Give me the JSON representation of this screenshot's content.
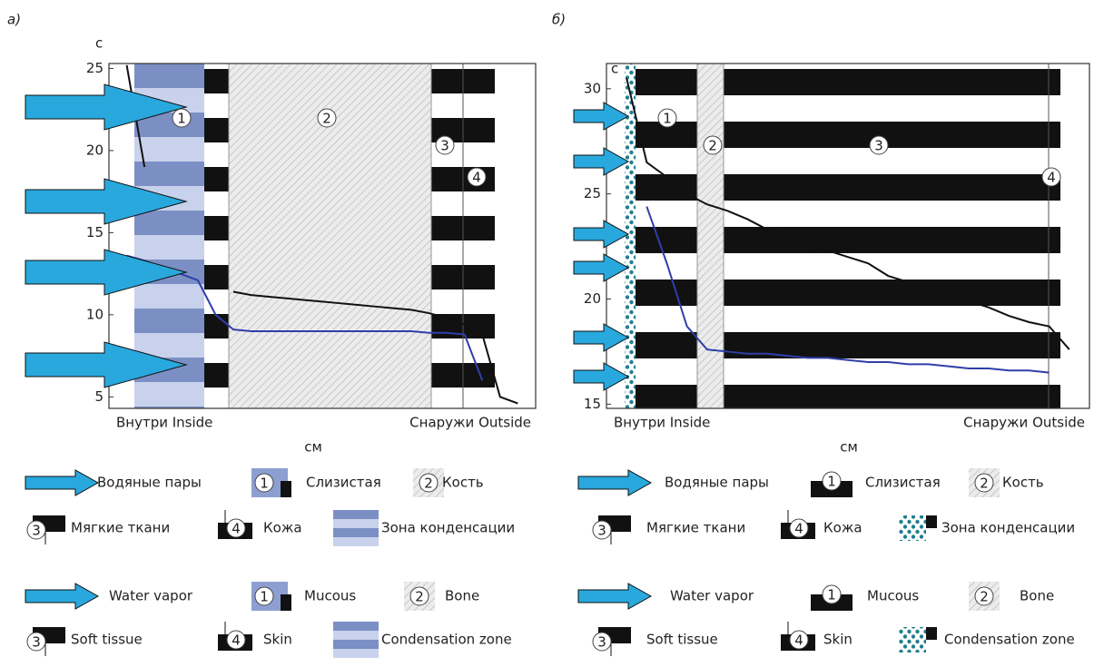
{
  "chart_data": [
    {
      "type": "line",
      "panel_label": "а)",
      "ylabel": "с",
      "xlabel": "см",
      "categories": [
        "Внутри Inside",
        null,
        null,
        null,
        null,
        null,
        null,
        null,
        null,
        null,
        null,
        null,
        null,
        null,
        null,
        null,
        null,
        null,
        null,
        null,
        null,
        null,
        null,
        null,
        "Снаружи Outside"
      ],
      "ylim": [
        4.3,
        25.3
      ],
      "yticks": [
        5,
        10,
        15,
        20,
        25
      ],
      "zone_markers": [
        "1",
        "2",
        "3",
        "4"
      ],
      "series": [
        {
          "color": "#111111",
          "values": [
            null,
            25.2,
            19,
            null,
            null,
            null,
            null,
            11.4,
            11.2,
            11.1,
            11.0,
            10.9,
            10.8,
            10.7,
            10.6,
            10.5,
            10.4,
            10.3,
            10.1,
            9.8,
            9.4,
            8.8,
            5.0,
            4.6,
            null
          ]
        },
        {
          "color": "#2f3fa8",
          "values": [
            null,
            13.6,
            13.3,
            12.9,
            12.5,
            12.1,
            10.0,
            9.1,
            9.0,
            9.0,
            9.0,
            9.0,
            9.0,
            9.0,
            9.0,
            9.0,
            9.0,
            9.0,
            8.9,
            8.9,
            8.8,
            6.0,
            null,
            null,
            null
          ]
        }
      ],
      "legend_ru": [
        "Водяные пары",
        "Слизистая",
        "Кость",
        "Мягкие ткани",
        "Кожа",
        "Зона конденсации"
      ],
      "legend_en": [
        "Water vapor",
        "Mucous",
        "Bone",
        "Soft tissue",
        "Skin",
        "Condensation zone"
      ]
    },
    {
      "type": "line",
      "panel_label": "б)",
      "ylabel": "с",
      "xlabel": "см",
      "categories": [
        "Внутри Inside",
        null,
        null,
        null,
        null,
        null,
        null,
        null,
        null,
        null,
        null,
        null,
        null,
        null,
        null,
        null,
        null,
        null,
        null,
        null,
        null,
        null,
        null,
        null,
        "Снаружи Outside"
      ],
      "ylim": [
        14.8,
        31.2
      ],
      "yticks": [
        15,
        20,
        25,
        30
      ],
      "zone_markers": [
        "1",
        "2",
        "3",
        "4"
      ],
      "series": [
        {
          "color": "#111111",
          "values": [
            null,
            30.5,
            26.5,
            25.8,
            25.0,
            24.5,
            24.2,
            23.8,
            23.3,
            23.0,
            22.6,
            22.3,
            22.0,
            21.7,
            21.1,
            20.8,
            20.5,
            20.2,
            19.9,
            19.6,
            19.2,
            18.9,
            18.7,
            17.6,
            null
          ]
        },
        {
          "color": "#2f3fa8",
          "values": [
            null,
            null,
            24.4,
            21.7,
            18.7,
            17.6,
            17.5,
            17.4,
            17.4,
            17.3,
            17.2,
            17.2,
            17.1,
            17.0,
            17.0,
            16.9,
            16.9,
            16.8,
            16.7,
            16.7,
            16.6,
            16.6,
            16.5,
            null,
            null
          ]
        }
      ],
      "legend_ru": [
        "Водяные пары",
        "Слизистая",
        "Кость",
        "Мягкие ткани",
        "Кожа",
        "Зона конденсации"
      ],
      "legend_en": [
        "Water vapor",
        "Mucous",
        "Bone",
        "Soft tissue",
        "Skin",
        "Condensation zone"
      ]
    }
  ]
}
